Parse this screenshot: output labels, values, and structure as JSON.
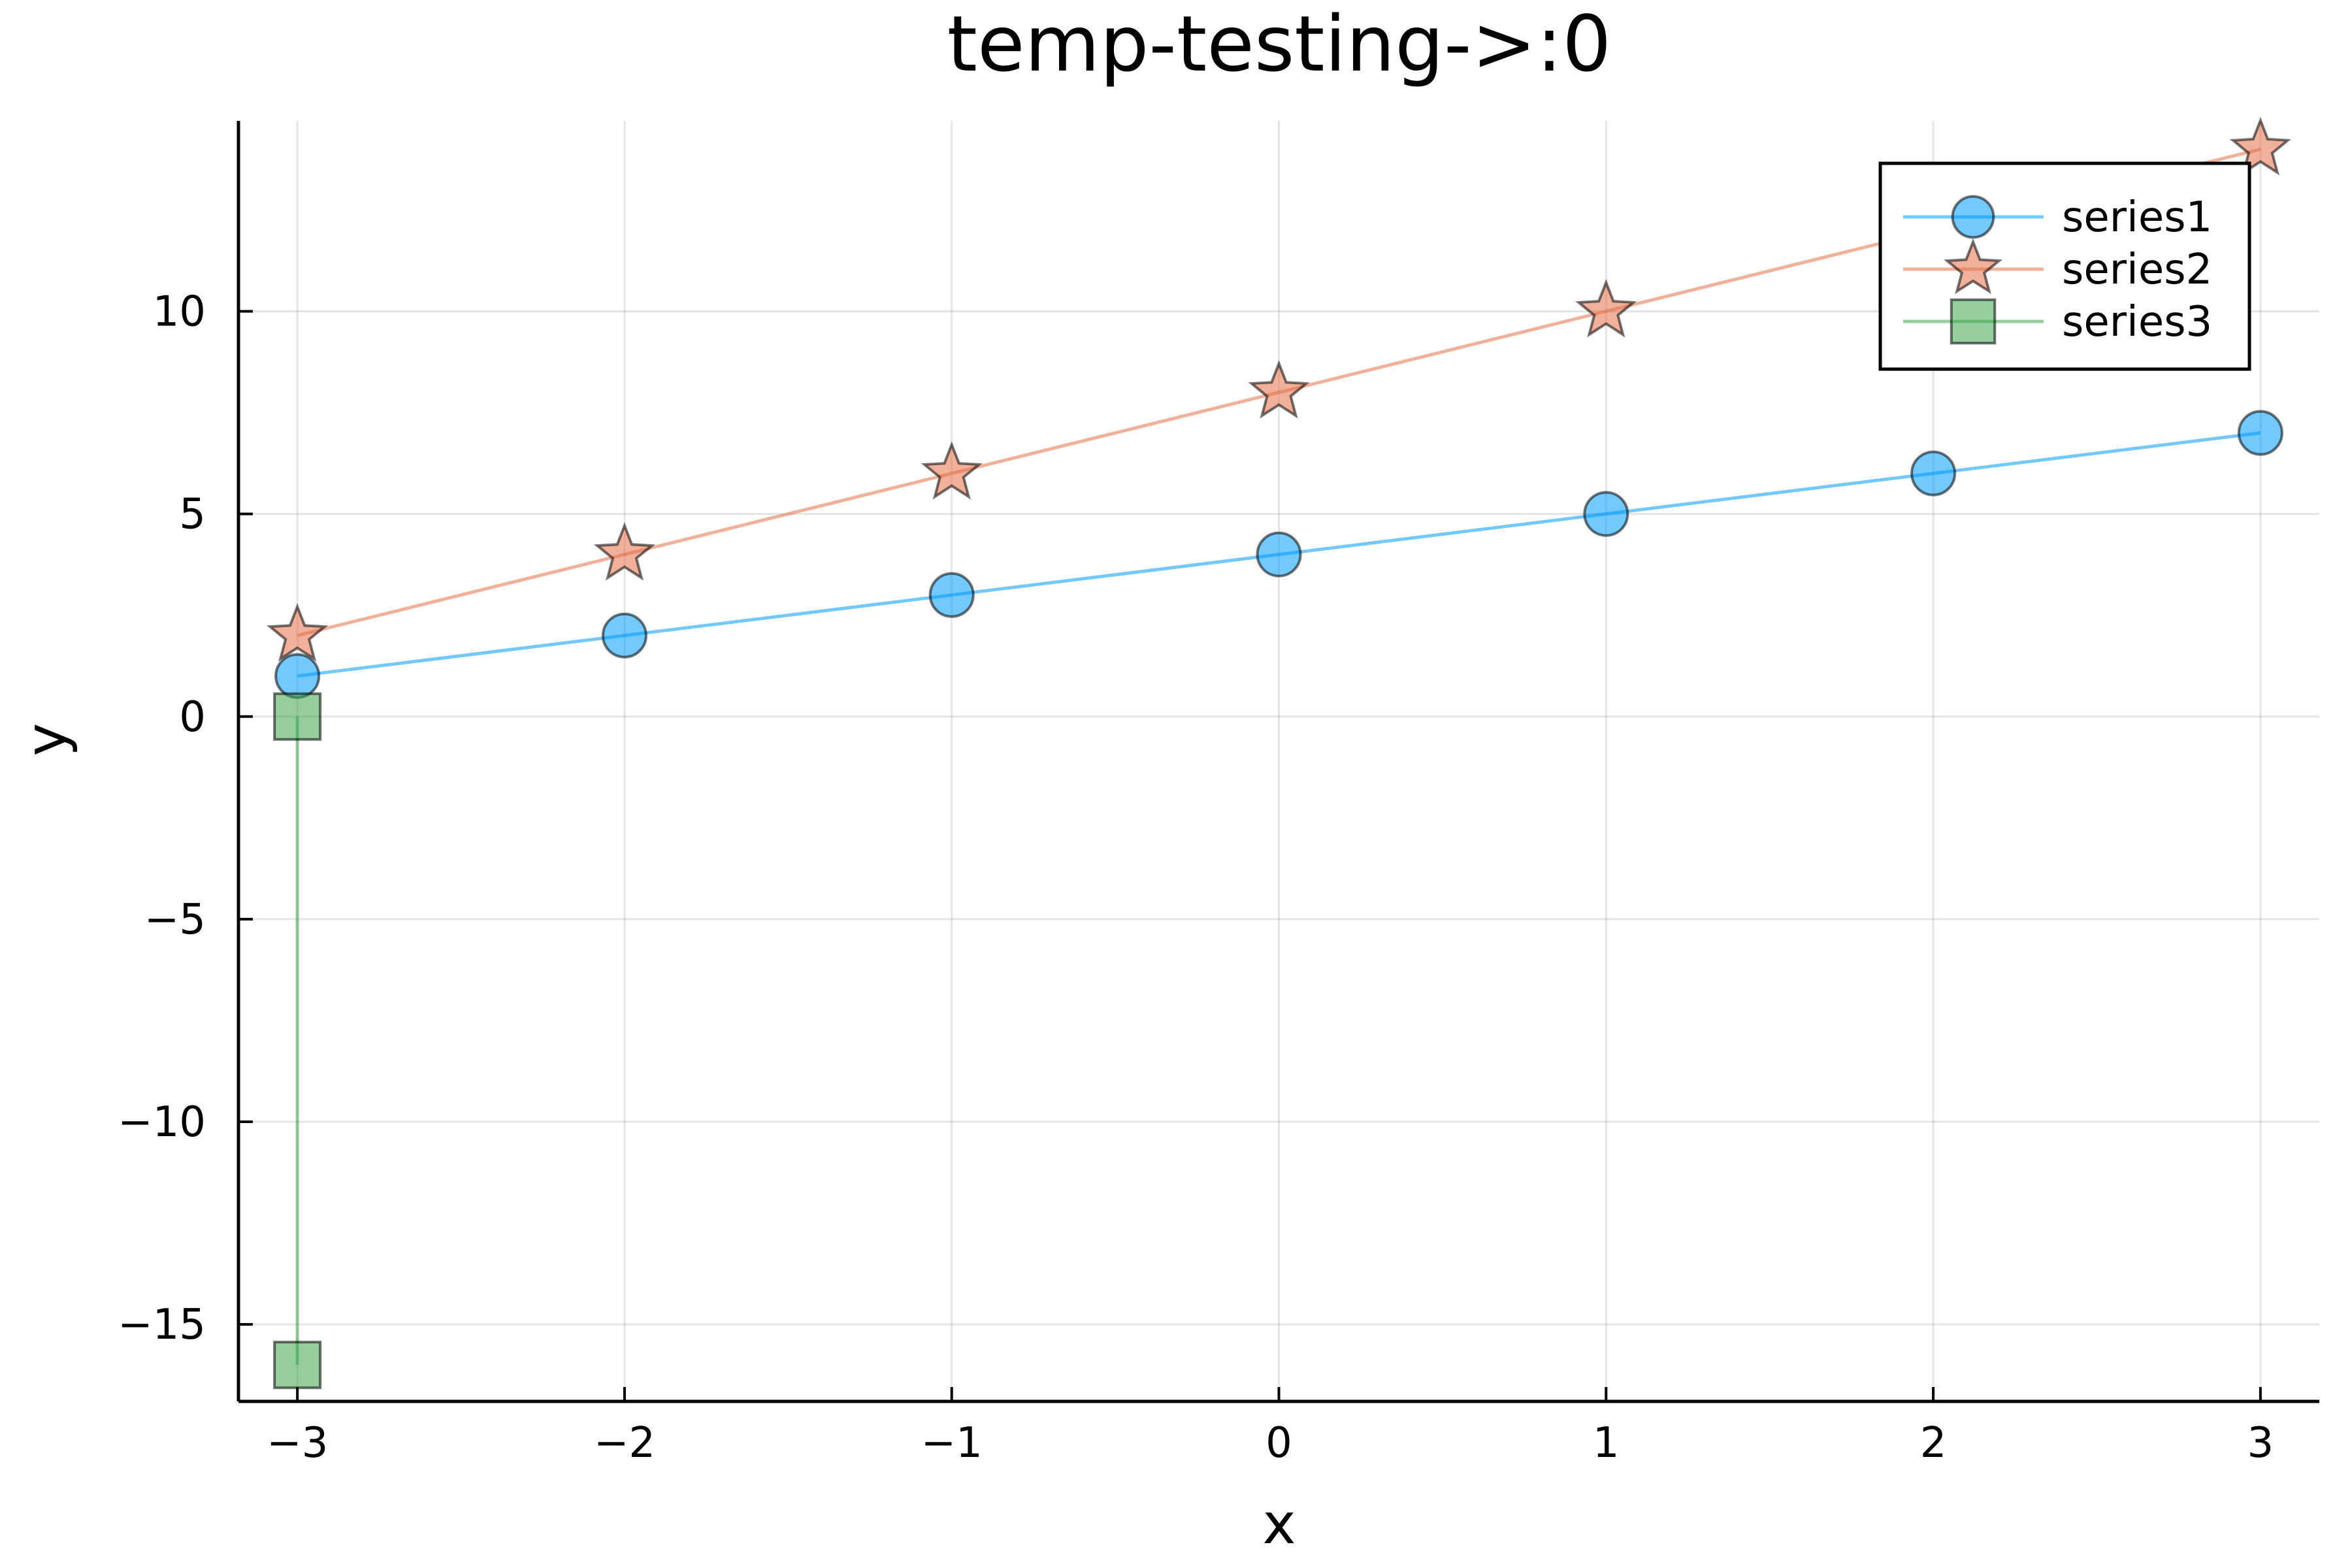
{
  "chart_data": {
    "type": "line",
    "title": "temp-testing->:0",
    "xlabel": "x",
    "ylabel": "y",
    "xlim": [
      -3.18,
      3.18
    ],
    "ylim": [
      -16.9,
      14.7
    ],
    "xticks": [
      -3,
      -2,
      -1,
      0,
      1,
      2,
      3
    ],
    "xtick_labels": [
      "−3",
      "−2",
      "−1",
      "0",
      "1",
      "2",
      "3"
    ],
    "yticks": [
      -15,
      -10,
      -5,
      0,
      5,
      10
    ],
    "ytick_labels": [
      "−15",
      "−10",
      "−5",
      "0",
      "5",
      "10"
    ],
    "grid": true,
    "legend_position": "top-right",
    "series": [
      {
        "name": "series1",
        "color": "#009AFA",
        "marker": "circle",
        "x": [
          -3,
          -2,
          -1,
          0,
          1,
          2,
          3
        ],
        "y": [
          1,
          2,
          3,
          4,
          5,
          6,
          7
        ]
      },
      {
        "name": "series2",
        "color": "#E36F47",
        "marker": "star",
        "x": [
          -3,
          -2,
          -1,
          0,
          1,
          2,
          3
        ],
        "y": [
          2,
          4,
          6,
          8,
          10,
          12,
          14
        ]
      },
      {
        "name": "series3",
        "color": "#3EA44E",
        "marker": "square",
        "x": [
          -3,
          -3
        ],
        "y": [
          0,
          -16
        ]
      }
    ]
  }
}
